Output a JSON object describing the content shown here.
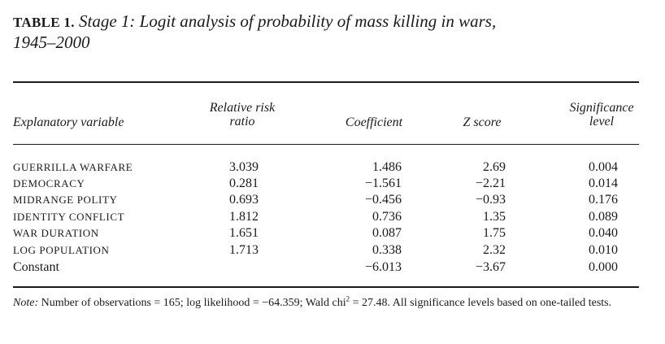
{
  "caption": {
    "label": "TABLE 1.",
    "title_line1": "Stage 1: Logit analysis of probability of mass killing in wars,",
    "title_line2": "1945–2000"
  },
  "headers": {
    "variable": "Explanatory variable",
    "rr_line1": "Relative risk",
    "rr_line2": "ratio",
    "coefficient": "Coefficient",
    "zscore": "Z score",
    "sig_line1": "Significance",
    "sig_line2": "level"
  },
  "rows": [
    {
      "variable": "Guerrilla warfare",
      "rr": "3.039",
      "coef": "1.486",
      "z": "2.69",
      "sig": "0.004"
    },
    {
      "variable": "Democracy",
      "rr": "0.281",
      "coef": "−1.561",
      "z": "−2.21",
      "sig": "0.014"
    },
    {
      "variable": "Midrange polity",
      "rr": "0.693",
      "coef": "−0.456",
      "z": "−0.93",
      "sig": "0.176"
    },
    {
      "variable": "Identity conflict",
      "rr": "1.812",
      "coef": "0.736",
      "z": "1.35",
      "sig": "0.089"
    },
    {
      "variable": "War duration",
      "rr": "1.651",
      "coef": "0.087",
      "z": "1.75",
      "sig": "0.040"
    },
    {
      "variable": "Log population",
      "rr": "1.713",
      "coef": "0.338",
      "z": "2.32",
      "sig": "0.010"
    },
    {
      "variable": "Constant",
      "rr": "",
      "coef": "−6.013",
      "z": "−3.67",
      "sig": "0.000"
    }
  ],
  "note": {
    "label": "Note:",
    "text_before_sup": " Number of observations = 165; log likelihood = −64.359; Wald chi",
    "sup": "2",
    "text_after_sup": " = 27.48. All significance levels based on one-tailed tests."
  }
}
